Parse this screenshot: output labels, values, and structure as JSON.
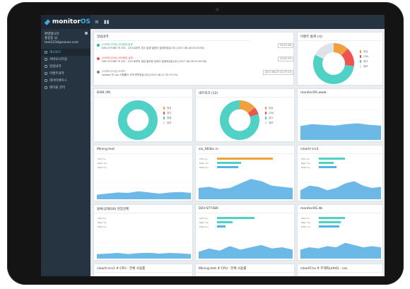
{
  "app": {
    "brand_prefix": "monitor",
    "brand_suffix": "OS"
  },
  "topbar": {
    "menu_icon": "hamburger-icon",
    "chart_icon": "bar-chart-icon"
  },
  "user": {
    "line1": "환영합니다",
    "line2": "홍길동 님",
    "email": "test1234@naver.com"
  },
  "nav": [
    {
      "label": "대시보드",
      "active": true
    },
    {
      "label": "서버모니터링",
      "active": false
    },
    {
      "label": "알림내역",
      "active": false
    },
    {
      "label": "이벤트내역",
      "active": false
    },
    {
      "label": "데이터베이스",
      "active": false
    },
    {
      "label": "레이블 관리",
      "active": false
    }
  ],
  "alarm_card": {
    "title": "알림내역",
    "items": [
      {
        "head": "[서버모니터링] 서버알림 발생",
        "body": "DEV-STY380 의 192 . 230 로부터 경고 발생 알림이 발생되었습니다.(2017-08-28 03:02:58)",
        "time": "04:27:58",
        "color": "#2ab99a"
      },
      {
        "head": "[서버모니터링] 서버알림 실패",
        "body": "DEV-STY380 의 192 . 230 로부터 점검 필요한 상태가 발생되었습니다.(2017-08-28 03:02:58)",
        "time": "03:07:53",
        "color": "#ef5350"
      },
      {
        "head": "[서버모니터링] 트래픽",
        "body": "newaw 의 cpu 사용률이 크게 변하였습니다.(2017-08-27 22:37:15)",
        "time": "2017-08-27 22:37:15",
        "color": "#7a8894"
      }
    ]
  },
  "donuts": [
    {
      "title": "이벤트 통계 (시)",
      "legend": [
        "정상",
        "CRA",
        "경고",
        "정보"
      ],
      "colors": [
        "#f0a03c",
        "#ef5350",
        "#4fd1c5",
        "#dfe3e8"
      ],
      "values": [
        12,
        15,
        55,
        18
      ]
    },
    {
      "title": "DISK (M)",
      "legend": [
        "정상",
        "경고",
        "위험",
        "정보"
      ],
      "colors": [
        "#f0a03c",
        "#ef5350",
        "#4fd1c5",
        "#dfe3e8"
      ],
      "values": [
        0,
        0,
        100,
        0
      ]
    },
    {
      "title": "네트워크 (12)",
      "legend": [
        "정상",
        "CRA",
        "경고",
        "정보"
      ],
      "colors": [
        "#f0a03c",
        "#ef5350",
        "#4fd1c5",
        "#dfe3e8"
      ],
      "values": [
        14,
        6,
        80,
        0
      ]
    }
  ],
  "panels": [
    {
      "title": "monitorOS www",
      "kind": "line",
      "bars": []
    },
    {
      "title": "Mining test",
      "kind": "bars",
      "bars": [
        {
          "label": "CPU %u",
          "value": 0,
          "color": "#f0a03c"
        },
        {
          "label": "Mem %u",
          "value": 0,
          "color": "#4fd1c5"
        },
        {
          "label": "DISK %u",
          "value": 0,
          "color": "#4fb3e8"
        }
      ]
    },
    {
      "title": "slo_083bc.in",
      "kind": "bars",
      "bars": [
        {
          "label": "CPU %u",
          "value": 0.78,
          "color": "#f0a03c"
        },
        {
          "label": "Mem %u",
          "value": 0.34,
          "color": "#4fd1c5"
        },
        {
          "label": "DISK %u",
          "value": 0.3,
          "color": "#4fb3e8"
        }
      ]
    },
    {
      "title": "cleartr-srv1",
      "kind": "bars",
      "bars": [
        {
          "label": "CPU %u",
          "value": 0.45,
          "color": "#4fd1c5"
        },
        {
          "label": "Mem %u",
          "value": 0.25,
          "color": "#4fd1c5"
        },
        {
          "label": "DISK %u",
          "value": 0.3,
          "color": "#4fb3e8"
        }
      ]
    },
    {
      "title": "블록/상태(00) 현장관제",
      "kind": "bars",
      "bars": [
        {
          "label": "CPU %u",
          "value": 0,
          "color": "#f0a03c"
        },
        {
          "label": "Mem %u",
          "value": 0,
          "color": "#4fd1c5"
        },
        {
          "label": "DISK %u",
          "value": 0,
          "color": "#4fb3e8"
        }
      ]
    },
    {
      "title": "DEV-STY380",
      "kind": "bars",
      "bars": [
        {
          "label": "CPU %u",
          "value": 0.52,
          "color": "#4fd1c5"
        },
        {
          "label": "Mem %u",
          "value": 0.22,
          "color": "#4fd1c5"
        },
        {
          "label": "DISK %u",
          "value": 0.12,
          "color": "#4fb3e8"
        }
      ]
    },
    {
      "title": "monitorOS db",
      "kind": "bars",
      "bars": [
        {
          "label": "CPU %u",
          "value": 0.45,
          "color": "#4fd1c5"
        },
        {
          "label": "Mem %u",
          "value": 0.38,
          "color": "#4fd1c5"
        },
        {
          "label": "DISK %u",
          "value": 0.35,
          "color": "#4fb3e8"
        }
      ]
    },
    {
      "title": "cleartr-srv1 # CPU - 전체 사용률",
      "kind": "line",
      "bars": []
    },
    {
      "title": "Mining test # CPU - 전체 사용률",
      "kind": "line",
      "bars": []
    },
    {
      "title": "cleartF.hu # 트래픽(eth0) - sxs",
      "kind": "line",
      "bars": []
    }
  ]
}
